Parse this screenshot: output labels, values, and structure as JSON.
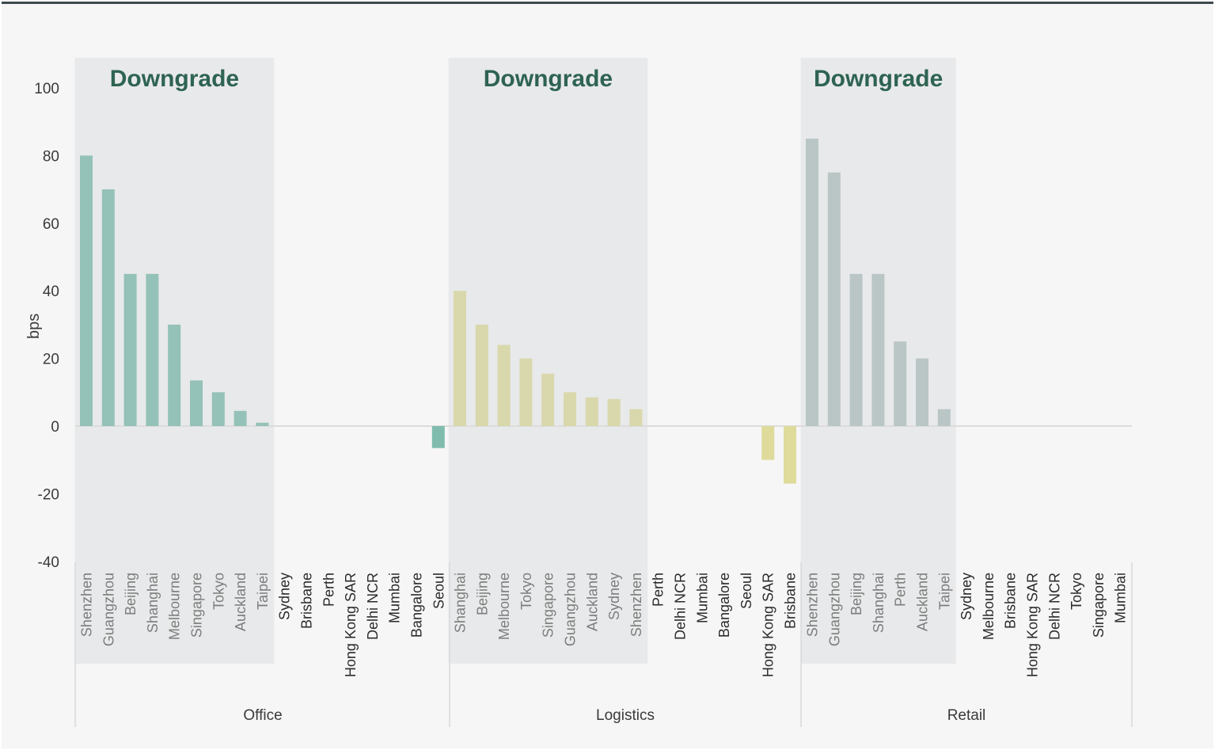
{
  "colors": {
    "background": "#f6f6f6",
    "top_border": "#3d4a4e",
    "shade": "#e8e9ea",
    "downgrade_text": "#2e6352",
    "office": "#94c1b8",
    "office_negative": "#7fbcae",
    "logistics": "#d8d8ac",
    "logistics_negative": "#dedb9b",
    "retail": "#b9c6c5",
    "label_shaded": "#7c7c7c",
    "label_normal": "#2a2a2a"
  },
  "chart_data": {
    "type": "bar",
    "ylabel": "bps",
    "ylim": [
      -40,
      100
    ],
    "yticks": [
      100,
      80,
      60,
      40,
      20,
      0,
      -20,
      -40
    ],
    "grid": false,
    "highlight_label": "Downgrade",
    "groups": [
      {
        "name": "Office",
        "categories": [
          "Shenzhen",
          "Guangzhou",
          "Beijing",
          "Shanghai",
          "Melbourne",
          "Singapore",
          "Tokyo",
          "Auckland",
          "Taipei",
          "Sydney",
          "Brisbane",
          "Perth",
          "Hong Kong SAR",
          "Delhi NCR",
          "Mumbai",
          "Bangalore",
          "Seoul"
        ],
        "values": [
          80,
          70,
          45,
          45,
          30,
          13.5,
          10,
          4.5,
          1,
          0,
          0,
          0,
          0,
          0,
          0,
          0,
          -6.5
        ],
        "downgrade_count": 9
      },
      {
        "name": "Logistics",
        "categories": [
          "Shanghai",
          "Beijing",
          "Melbourne",
          "Tokyo",
          "Singapore",
          "Guangzhou",
          "Auckland",
          "Sydney",
          "Shenzhen",
          "Perth",
          "Delhi NCR",
          "Mumbai",
          "Bangalore",
          "Seoul",
          "Hong Kong SAR",
          "Brisbane"
        ],
        "values": [
          40,
          30,
          24,
          20,
          15.5,
          10,
          8.5,
          8,
          5,
          0,
          0,
          0,
          0,
          0,
          -10,
          -17
        ],
        "downgrade_count": 9
      },
      {
        "name": "Retail",
        "categories": [
          "Shenzhen",
          "Guangzhou",
          "Beijing",
          "Shanghai",
          "Perth",
          "Auckland",
          "Taipei",
          "Sydney",
          "Melbourne",
          "Brisbane",
          "Hong Kong SAR",
          "Delhi NCR",
          "Tokyo",
          "Singapore",
          "Mumbai"
        ],
        "values": [
          85,
          75,
          45,
          45,
          25,
          20,
          5,
          0,
          0,
          0,
          0,
          0,
          0,
          0,
          0
        ],
        "downgrade_count": 7
      }
    ]
  }
}
